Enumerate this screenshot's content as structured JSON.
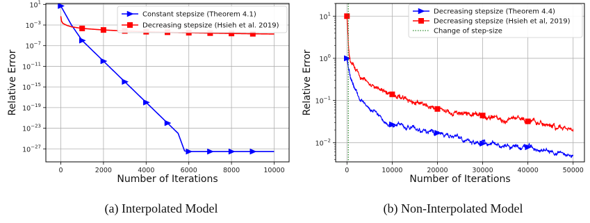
{
  "chart_data": [
    {
      "type": "line",
      "caption": "(a) Interpolated Model",
      "xlabel": "Number of Iterations",
      "ylabel": "Relative Error",
      "yscale": "log",
      "xlim": [
        -700,
        10700
      ],
      "ylim": [
        3e-30,
        15
      ],
      "xticks": [
        0,
        2000,
        4000,
        6000,
        8000,
        10000
      ],
      "yticks": [
        {
          "v": 10.0,
          "base": "10",
          "exp": "1"
        },
        {
          "v": 0.001,
          "base": "10",
          "exp": "−3"
        },
        {
          "v": 1e-07,
          "base": "10",
          "exp": "−7"
        },
        {
          "v": 1e-11,
          "base": "10",
          "exp": "−11"
        },
        {
          "v": 1e-15,
          "base": "10",
          "exp": "−15"
        },
        {
          "v": 1e-19,
          "base": "10",
          "exp": "−19"
        },
        {
          "v": 1e-23,
          "base": "10",
          "exp": "−23"
        },
        {
          "v": 1e-27,
          "base": "10",
          "exp": "−27"
        }
      ],
      "grid": true,
      "legend_position": "top-right",
      "series": [
        {
          "name": "Constant stepsize (Theorem 4.1)",
          "color": "#0000ff",
          "marker": "triangle-right",
          "x": [
            0,
            500,
            1000,
            2000,
            3000,
            4000,
            5000,
            5500,
            5800,
            6000,
            7000,
            8000,
            9000,
            10000
          ],
          "y": [
            5,
            0.001,
            1e-06,
            1e-10,
            1e-14,
            1e-18,
            1e-22,
            1e-24,
            4e-28,
            3e-28,
            3e-28,
            3e-28,
            3e-28,
            3e-28
          ],
          "marker_x": [
            0,
            1000,
            2000,
            3000,
            4000,
            5000,
            6000,
            7000,
            8000,
            9000
          ]
        },
        {
          "name": "Decreasing stepsize (Hsieh et al. 2019)",
          "color": "#ff0000",
          "marker": "square",
          "x": [
            0,
            30,
            100,
            300,
            500,
            1000,
            2000,
            3000,
            4000,
            5000,
            6000,
            7000,
            8000,
            9000,
            10000
          ],
          "y": [
            0.05,
            0.006,
            0.002,
            0.0008,
            0.00045,
            0.00022,
            0.00011,
            7e-05,
            5e-05,
            4e-05,
            3.2e-05,
            2.7e-05,
            2.3e-05,
            2e-05,
            1.8e-05
          ],
          "marker_x": [
            1000,
            2000,
            3000,
            4000,
            5000,
            6000,
            7000,
            8000,
            9000
          ]
        }
      ]
    },
    {
      "type": "line",
      "caption": "(b) Non-Interpolated Model",
      "xlabel": "Number of Iterations",
      "ylabel": "Relative Error",
      "yscale": "log",
      "xlim": [
        -2500,
        52500
      ],
      "ylim": [
        0.0035,
        20
      ],
      "xticks": [
        0,
        10000,
        20000,
        30000,
        40000,
        50000
      ],
      "yticks": [
        {
          "v": 10,
          "base": "10",
          "exp": "1"
        },
        {
          "v": 1,
          "base": "10",
          "exp": "0"
        },
        {
          "v": 0.1,
          "base": "10",
          "exp": "−1"
        },
        {
          "v": 0.01,
          "base": "10",
          "exp": "−2"
        }
      ],
      "grid": true,
      "legend_position": "top-right",
      "series": [
        {
          "name": "Decreasing stepsize (Theorem 4.4)",
          "color": "#0000ff",
          "marker": "triangle-right",
          "x": [
            0,
            500,
            1000,
            2000,
            3000,
            5000,
            7000,
            10000,
            15000,
            20000,
            25000,
            30000,
            35000,
            40000,
            45000,
            50000
          ],
          "y": [
            1.0,
            0.5,
            0.3,
            0.17,
            0.1,
            0.065,
            0.045,
            0.027,
            0.021,
            0.017,
            0.013,
            0.0095,
            0.0085,
            0.0078,
            0.0058,
            0.0049
          ],
          "marker_x": [
            0,
            10000,
            20000,
            30000,
            40000
          ]
        },
        {
          "name": "Decreasing stepsize (Hsieh et al, 2019)",
          "color": "#ff0000",
          "marker": "square",
          "x": [
            0,
            200,
            500,
            1000,
            2000,
            3000,
            5000,
            7000,
            10000,
            15000,
            20000,
            25000,
            30000,
            35000,
            40000,
            45000,
            50000
          ],
          "y": [
            10,
            3.5,
            1.4,
            0.8,
            0.5,
            0.36,
            0.25,
            0.2,
            0.14,
            0.09,
            0.063,
            0.051,
            0.044,
            0.037,
            0.032,
            0.025,
            0.021
          ],
          "marker_x": [
            0,
            10000,
            20000,
            30000,
            40000
          ]
        },
        {
          "name": "Change of step-size",
          "color": "#2e8b2e",
          "style": "dotted-vertical",
          "x": [
            300
          ]
        }
      ]
    }
  ]
}
